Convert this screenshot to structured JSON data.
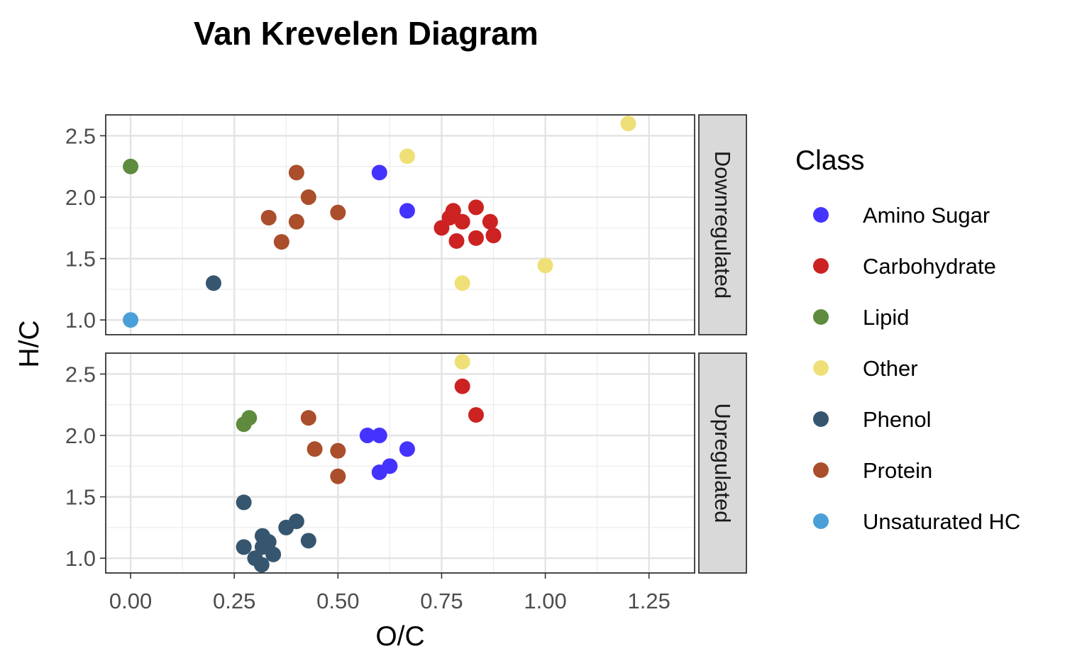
{
  "chart_data": {
    "type": "scatter",
    "title": "Van Krevelen Diagram",
    "xlabel": "O/C",
    "ylabel": "H/C",
    "xlim": [
      -0.06,
      1.36
    ],
    "ylim": [
      0.88,
      2.67
    ],
    "x_ticks": [
      "0.00",
      "0.25",
      "0.50",
      "0.75",
      "1.00",
      "1.25"
    ],
    "y_ticks": [
      "1.0",
      "1.5",
      "2.0",
      "2.5"
    ],
    "grid": true,
    "facets": [
      "Downregulated",
      "Upregulated"
    ],
    "legend": {
      "title": "Class",
      "position": "right",
      "items": [
        {
          "label": "Amino Sugar",
          "color": "#4433FF"
        },
        {
          "label": "Carbohydrate",
          "color": "#CC2222"
        },
        {
          "label": "Lipid",
          "color": "#5E8B3E"
        },
        {
          "label": "Other",
          "color": "#EEE077"
        },
        {
          "label": "Phenol",
          "color": "#36566F"
        },
        {
          "label": "Protein",
          "color": "#AA4E2B"
        },
        {
          "label": "Unsaturated HC",
          "color": "#4A9FD8"
        }
      ]
    },
    "series": [
      {
        "facet": "Downregulated",
        "class": "Lipid",
        "points": [
          [
            0.0,
            2.25
          ]
        ]
      },
      {
        "facet": "Downregulated",
        "class": "Unsaturated HC",
        "points": [
          [
            0.0,
            1.0
          ]
        ]
      },
      {
        "facet": "Downregulated",
        "class": "Phenol",
        "points": [
          [
            0.2,
            1.3
          ]
        ]
      },
      {
        "facet": "Downregulated",
        "class": "Protein",
        "points": [
          [
            0.333,
            1.833
          ],
          [
            0.364,
            1.636
          ],
          [
            0.4,
            2.2
          ],
          [
            0.4,
            1.8
          ],
          [
            0.429,
            2.0
          ],
          [
            0.5,
            1.875
          ]
        ]
      },
      {
        "facet": "Downregulated",
        "class": "Amino Sugar",
        "points": [
          [
            0.6,
            2.2
          ],
          [
            0.667,
            1.889
          ]
        ]
      },
      {
        "facet": "Downregulated",
        "class": "Other",
        "points": [
          [
            0.667,
            2.333
          ],
          [
            0.8,
            1.3
          ],
          [
            1.0,
            1.444
          ],
          [
            1.2,
            2.6
          ]
        ]
      },
      {
        "facet": "Downregulated",
        "class": "Carbohydrate",
        "points": [
          [
            0.75,
            1.75
          ],
          [
            0.769,
            1.833
          ],
          [
            0.778,
            1.889
          ],
          [
            0.786,
            1.643
          ],
          [
            0.8,
            1.8
          ],
          [
            0.833,
            1.917
          ],
          [
            0.833,
            1.667
          ],
          [
            0.867,
            1.8
          ],
          [
            0.875,
            1.688
          ]
        ]
      },
      {
        "facet": "Upregulated",
        "class": "Other",
        "points": [
          [
            0.8,
            2.6
          ]
        ]
      },
      {
        "facet": "Upregulated",
        "class": "Carbohydrate",
        "points": [
          [
            0.8,
            2.4
          ],
          [
            0.833,
            2.167
          ]
        ]
      },
      {
        "facet": "Upregulated",
        "class": "Lipid",
        "points": [
          [
            0.273,
            2.091
          ],
          [
            0.286,
            2.143
          ]
        ]
      },
      {
        "facet": "Upregulated",
        "class": "Protein",
        "points": [
          [
            0.429,
            2.143
          ],
          [
            0.444,
            1.889
          ],
          [
            0.5,
            1.875
          ],
          [
            0.5,
            1.667
          ]
        ]
      },
      {
        "facet": "Upregulated",
        "class": "Amino Sugar",
        "points": [
          [
            0.571,
            2.0
          ],
          [
            0.6,
            2.0
          ],
          [
            0.667,
            1.889
          ],
          [
            0.625,
            1.75
          ],
          [
            0.6,
            1.7
          ]
        ]
      },
      {
        "facet": "Upregulated",
        "class": "Phenol",
        "points": [
          [
            0.273,
            1.455
          ],
          [
            0.4,
            1.3
          ],
          [
            0.375,
            1.25
          ],
          [
            0.429,
            1.143
          ],
          [
            0.273,
            1.091
          ],
          [
            0.273,
            1.091
          ],
          [
            0.318,
            1.182
          ],
          [
            0.333,
            1.133
          ],
          [
            0.318,
            1.091
          ],
          [
            0.3,
            1.0
          ],
          [
            0.344,
            1.031
          ],
          [
            0.316,
            0.947
          ]
        ]
      }
    ]
  }
}
